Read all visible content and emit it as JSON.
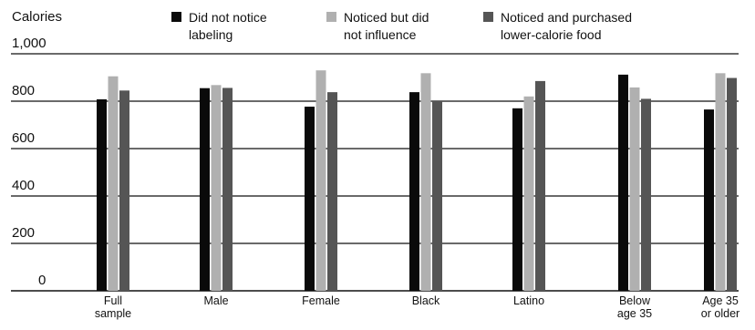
{
  "chart_data": {
    "type": "bar",
    "title": "",
    "xlabel": "",
    "ylabel": "Calories",
    "ylim": [
      0,
      1000
    ],
    "yticks": [
      0,
      200,
      400,
      600,
      800,
      1000
    ],
    "ytick_labels": [
      "0",
      "200",
      "400",
      "600",
      "800",
      "1,000"
    ],
    "grid": true,
    "legend_position": "top",
    "categories": [
      [
        "Full",
        "sample"
      ],
      [
        "Male"
      ],
      [
        "Female"
      ],
      [
        "Black"
      ],
      [
        "Latino"
      ],
      [
        "Below",
        "age 35"
      ],
      [
        "Age 35",
        "or older"
      ]
    ],
    "series": [
      {
        "name": [
          "Did not notice",
          "labeling"
        ],
        "color": "#0a0a0a",
        "values": [
          808,
          855,
          777,
          838,
          770,
          912,
          765
        ]
      },
      {
        "name": [
          "Noticed but did",
          "not influence"
        ],
        "color": "#b0b0b0",
        "values": [
          905,
          868,
          930,
          918,
          820,
          858,
          918
        ]
      },
      {
        "name": [
          "Noticed and purchased",
          "lower-calorie food"
        ],
        "color": "#555555",
        "values": [
          845,
          856,
          838,
          800,
          885,
          810,
          898
        ]
      }
    ]
  }
}
